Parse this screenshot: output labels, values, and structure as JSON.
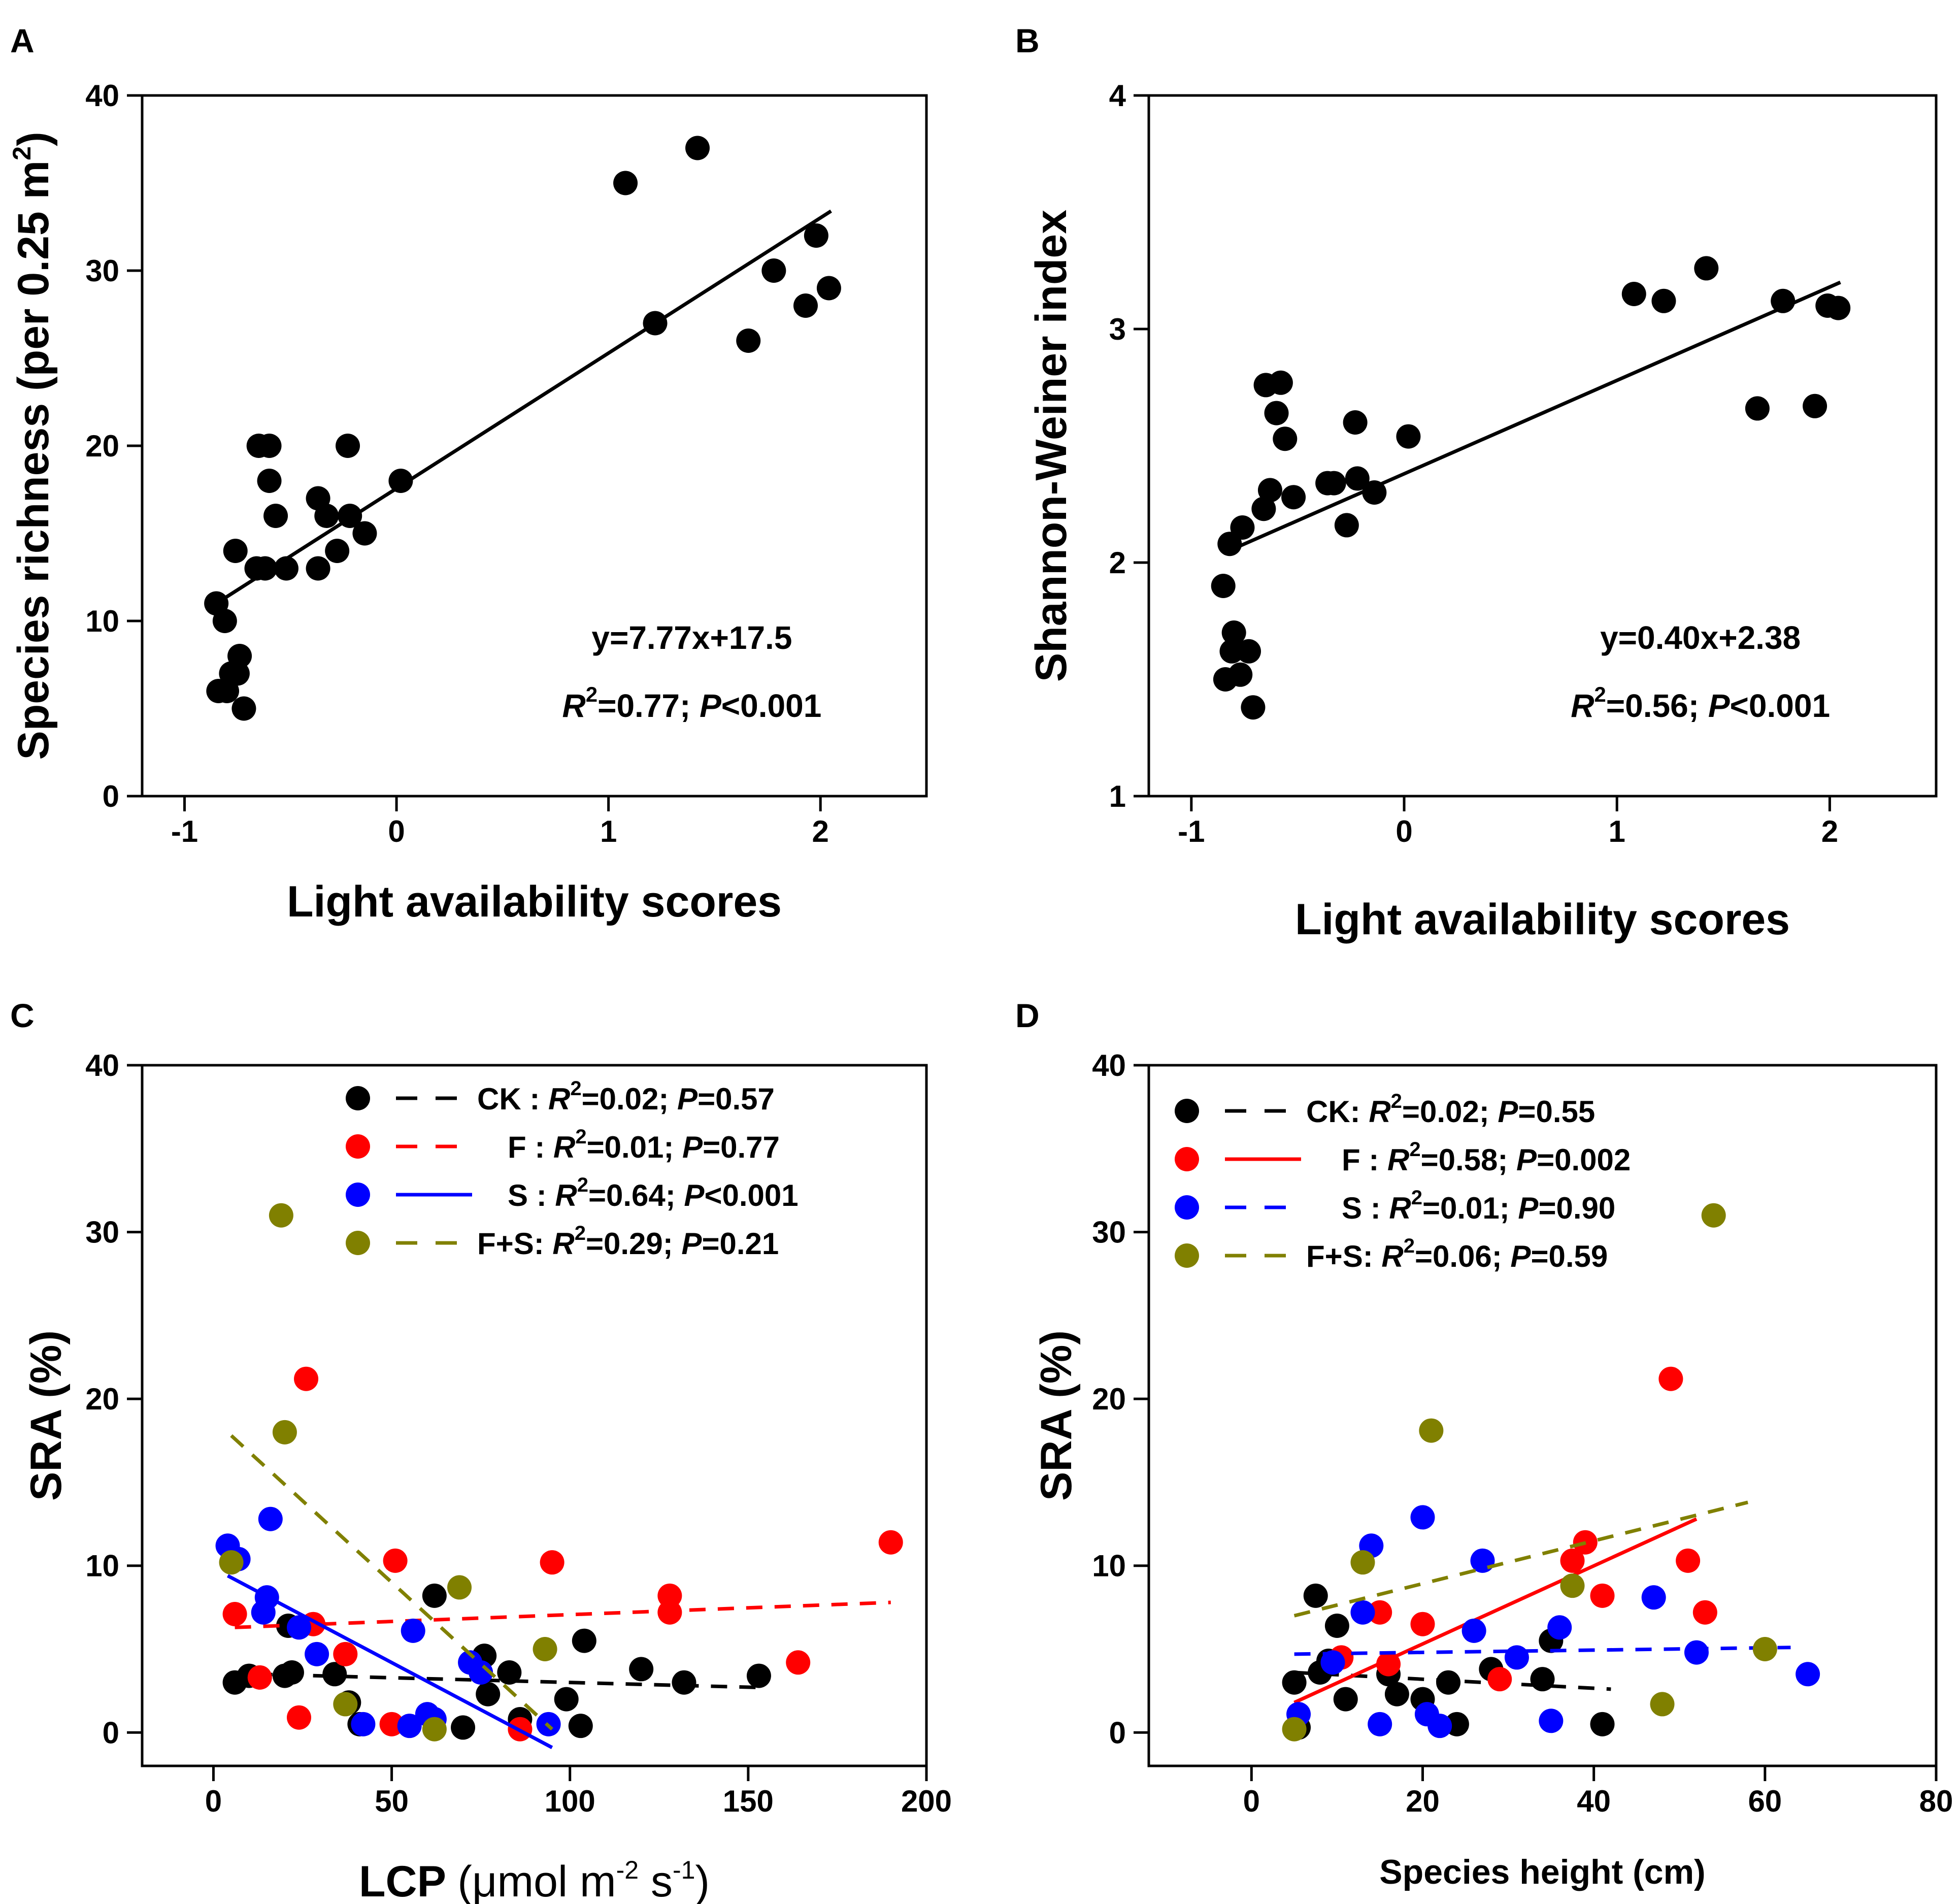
{
  "chart_data": [
    {
      "type": "scatter",
      "panel_label": "A",
      "xlabel": "Light availability scores",
      "ylabel": "Species richness (per 0.25 m",
      "ylabel_sup": "2",
      "ylabel_end": ")",
      "xlim": [
        -1.2,
        2.5
      ],
      "ylim": [
        0,
        40
      ],
      "xticks": [
        -1,
        0,
        1,
        2
      ],
      "yticks": [
        0,
        10,
        20,
        30,
        40
      ],
      "x_tick_labels": [
        "-1",
        "0",
        "1",
        "2"
      ],
      "y_tick_labels": [
        "0",
        "10",
        "20",
        "30",
        "40"
      ],
      "points": [
        [
          -0.85,
          11
        ],
        [
          -0.81,
          10
        ],
        [
          -0.84,
          6
        ],
        [
          -0.8,
          6
        ],
        [
          -0.78,
          7
        ],
        [
          -0.75,
          7
        ],
        [
          -0.74,
          8
        ],
        [
          -0.72,
          5
        ],
        [
          -0.76,
          14
        ],
        [
          -0.66,
          13
        ],
        [
          -0.65,
          20
        ],
        [
          -0.6,
          20
        ],
        [
          -0.6,
          18
        ],
        [
          -0.57,
          16
        ],
        [
          -0.62,
          13
        ],
        [
          -0.52,
          13
        ],
        [
          -0.37,
          17
        ],
        [
          -0.37,
          13
        ],
        [
          -0.33,
          16
        ],
        [
          -0.28,
          14
        ],
        [
          -0.23,
          20
        ],
        [
          -0.22,
          16
        ],
        [
          -0.15,
          15
        ],
        [
          0.02,
          18
        ],
        [
          1.08,
          35
        ],
        [
          1.22,
          27
        ],
        [
          1.42,
          37
        ],
        [
          1.66,
          26
        ],
        [
          1.78,
          30
        ],
        [
          1.93,
          28
        ],
        [
          1.98,
          32
        ],
        [
          2.04,
          29
        ]
      ],
      "fit": {
        "x": [
          -0.85,
          2.05
        ],
        "y": [
          11.0,
          33.4
        ],
        "color": "#000000",
        "dashed": false
      },
      "annotation": {
        "equation": "y=7.77x+17.5",
        "r2_symbol": "R",
        "r2_sup": "2",
        "r2_value": "=0.77;",
        "p_symbol": "P",
        "p_value": "<0.001"
      }
    },
    {
      "type": "scatter",
      "panel_label": "B",
      "xlabel": "Light availability scores",
      "ylabel": "Shannon-Weiner index",
      "xlim": [
        -1.2,
        2.5
      ],
      "ylim": [
        1,
        4
      ],
      "xticks": [
        -1,
        0,
        1,
        2
      ],
      "yticks": [
        1,
        2,
        3,
        4
      ],
      "x_tick_labels": [
        "-1",
        "0",
        "1",
        "2"
      ],
      "y_tick_labels": [
        "1",
        "2",
        "3",
        "4"
      ],
      "points": [
        [
          -0.85,
          1.9
        ],
        [
          -0.82,
          2.08
        ],
        [
          -0.8,
          1.7
        ],
        [
          -0.81,
          1.62
        ],
        [
          -0.84,
          1.5
        ],
        [
          -0.77,
          1.52
        ],
        [
          -0.73,
          1.62
        ],
        [
          -0.71,
          1.38
        ],
        [
          -0.76,
          2.15
        ],
        [
          -0.66,
          2.23
        ],
        [
          -0.65,
          2.76
        ],
        [
          -0.63,
          2.31
        ],
        [
          -0.6,
          2.64
        ],
        [
          -0.58,
          2.77
        ],
        [
          -0.56,
          2.53
        ],
        [
          -0.52,
          2.28
        ],
        [
          -0.36,
          2.34
        ],
        [
          -0.33,
          2.34
        ],
        [
          -0.27,
          2.16
        ],
        [
          -0.23,
          2.6
        ],
        [
          -0.22,
          2.36
        ],
        [
          -0.14,
          2.3
        ],
        [
          0.02,
          2.54
        ],
        [
          1.08,
          3.15
        ],
        [
          1.22,
          3.12
        ],
        [
          1.42,
          3.26
        ],
        [
          1.66,
          2.66
        ],
        [
          1.78,
          3.12
        ],
        [
          1.93,
          2.67
        ],
        [
          1.99,
          3.1
        ],
        [
          2.04,
          3.09
        ]
      ],
      "fit": {
        "x": [
          -0.85,
          2.05
        ],
        "y": [
          2.04,
          3.2
        ],
        "color": "#000000",
        "dashed": false
      },
      "annotation": {
        "equation": "y=0.40x+2.38",
        "r2_symbol": "R",
        "r2_sup": "2",
        "r2_value": "=0.56;",
        "p_symbol": "P",
        "p_value": "<0.001"
      }
    },
    {
      "type": "scatter",
      "panel_label": "C",
      "xlabel": "LCP",
      "xlabel_unit": "(μmol m",
      "xlabel_sup1": "-2",
      "xlabel_mid": " s",
      "xlabel_sup2": "-1",
      "xlabel_end": ")",
      "ylabel": "SRA (%)",
      "xlim": [
        -20,
        200
      ],
      "ylim": [
        -2,
        40
      ],
      "xticks": [
        0,
        50,
        100,
        150,
        200
      ],
      "yticks": [
        0,
        10,
        20,
        30,
        40
      ],
      "x_tick_labels": [
        "0",
        "50",
        "100",
        "150",
        "200"
      ],
      "y_tick_labels": [
        "0",
        "10",
        "20",
        "30",
        "40"
      ],
      "series": [
        {
          "name": "CK",
          "color": "#000000",
          "points": [
            [
              6,
              3
            ],
            [
              10,
              3.4
            ],
            [
              20,
              3.4
            ],
            [
              21,
              6.4
            ],
            [
              22,
              3.6
            ],
            [
              34,
              3.5
            ],
            [
              38,
              1.8
            ],
            [
              41,
              0.5
            ],
            [
              62,
              8.2
            ],
            [
              70,
              0.3
            ],
            [
              76,
              4.6
            ],
            [
              77,
              2.3
            ],
            [
              83,
              3.6
            ],
            [
              86,
              0.8
            ],
            [
              99,
              2.0
            ],
            [
              103,
              0.4
            ],
            [
              104,
              5.5
            ],
            [
              120,
              3.8
            ],
            [
              132,
              3.0
            ],
            [
              153,
              3.4
            ]
          ],
          "fit": {
            "x": [
              12,
              153
            ],
            "y": [
              3.5,
              2.7
            ],
            "dashed": true
          },
          "legend": {
            "sep": " : ",
            "r2_value": "=0.02;",
            "p_value": "=0.57"
          }
        },
        {
          "name": "F",
          "color": "#ff0000",
          "points": [
            [
              6,
              7.1
            ],
            [
              13,
              3.3
            ],
            [
              24,
              0.9
            ],
            [
              26,
              21.2
            ],
            [
              28,
              6.5
            ],
            [
              37,
              4.7
            ],
            [
              50,
              0.5
            ],
            [
              51,
              10.3
            ],
            [
              86,
              0.2
            ],
            [
              95,
              10.2
            ],
            [
              128,
              7.2
            ],
            [
              128,
              8.2
            ],
            [
              164,
              4.2
            ],
            [
              190,
              11.4
            ]
          ],
          "fit": {
            "x": [
              6,
              190
            ],
            "y": [
              6.3,
              7.8
            ],
            "dashed": true
          },
          "legend": {
            "sep": "  : ",
            "r2_value": "=0.01;",
            "p_value": "=0.77"
          }
        },
        {
          "name": "S",
          "color": "#0000ff",
          "points": [
            [
              4,
              11.2
            ],
            [
              7,
              10.4
            ],
            [
              14,
              7.2
            ],
            [
              15,
              8.1
            ],
            [
              16,
              12.8
            ],
            [
              24,
              6.3
            ],
            [
              29,
              4.7
            ],
            [
              42,
              0.5
            ],
            [
              55,
              0.4
            ],
            [
              56,
              6.1
            ],
            [
              60,
              1.1
            ],
            [
              62,
              0.8
            ],
            [
              72,
              4.2
            ],
            [
              75,
              3.6
            ],
            [
              94,
              0.5
            ]
          ],
          "fit": {
            "x": [
              4,
              95
            ],
            "y": [
              9.4,
              -0.9
            ],
            "dashed": false
          },
          "legend": {
            "sep": "  : ",
            "r2_value": "=0.64;",
            "p_value": "<0.001"
          }
        },
        {
          "name": "F+S",
          "color": "#808000",
          "points": [
            [
              5,
              10.2
            ],
            [
              19,
              31
            ],
            [
              20,
              18
            ],
            [
              37,
              1.7
            ],
            [
              62,
              0.2
            ],
            [
              69,
              8.7
            ],
            [
              93,
              5.0
            ]
          ],
          "fit": {
            "x": [
              5,
              95
            ],
            "y": [
              17.8,
              0.2
            ],
            "dashed": true
          },
          "legend": {
            "sep": ": ",
            "r2_value": "=0.29;",
            "p_value": "=0.21"
          }
        }
      ]
    },
    {
      "type": "scatter",
      "panel_label": "D",
      "xlabel": "Species height (cm)",
      "ylabel": "SRA (%)",
      "xlim": [
        -12,
        80
      ],
      "ylim": [
        -2,
        40
      ],
      "xticks": [
        0,
        20,
        40,
        60,
        80
      ],
      "yticks": [
        0,
        10,
        20,
        30,
        40
      ],
      "x_tick_labels": [
        "0",
        "20",
        "40",
        "60",
        "80"
      ],
      "y_tick_labels": [
        "0",
        "10",
        "20",
        "30",
        "40"
      ],
      "series": [
        {
          "name": "CK",
          "color": "#000000",
          "points": [
            [
              5,
              3
            ],
            [
              5.5,
              0.3
            ],
            [
              7.5,
              8.2
            ],
            [
              8,
              3.6
            ],
            [
              9,
              4.3
            ],
            [
              10,
              6.4
            ],
            [
              11,
              2.0
            ],
            [
              16,
              3.5
            ],
            [
              17,
              2.3
            ],
            [
              20,
              2.0
            ],
            [
              23,
              3.0
            ],
            [
              24,
              0.5
            ],
            [
              28,
              3.8
            ],
            [
              34,
              3.2
            ],
            [
              35,
              5.5
            ],
            [
              41,
              0.5
            ]
          ],
          "fit": {
            "x": [
              5,
              42
            ],
            "y": [
              3.6,
              2.6
            ],
            "dashed": true
          },
          "legend": {
            "sep": ": ",
            "r2_value": "=0.02;",
            "p_value": "=0.55"
          }
        },
        {
          "name": "F",
          "color": "#ff0000",
          "points": [
            [
              10.5,
              4.5
            ],
            [
              15,
              7.2
            ],
            [
              16,
              4.1
            ],
            [
              20,
              6.5
            ],
            [
              29,
              3.2
            ],
            [
              37.5,
              10.3
            ],
            [
              39,
              11.4
            ],
            [
              41,
              8.2
            ],
            [
              49,
              21.2
            ],
            [
              51,
              10.3
            ],
            [
              53,
              7.2
            ]
          ],
          "fit": {
            "x": [
              5,
              52
            ],
            "y": [
              1.8,
              12.8
            ],
            "dashed": false
          },
          "legend": {
            "sep": " : ",
            "r2_value": "=0.58;",
            "p_value": "=0.002"
          }
        },
        {
          "name": "S",
          "color": "#0000ff",
          "points": [
            [
              5.5,
              1.1
            ],
            [
              9.5,
              4.2
            ],
            [
              13,
              7.2
            ],
            [
              14,
              11.2
            ],
            [
              15,
              0.5
            ],
            [
              20,
              12.9
            ],
            [
              20.5,
              1.1
            ],
            [
              22,
              0.4
            ],
            [
              26,
              6.1
            ],
            [
              27,
              10.3
            ],
            [
              31,
              4.5
            ],
            [
              35,
              0.7
            ],
            [
              36,
              6.3
            ],
            [
              47,
              8.1
            ],
            [
              52,
              4.8
            ],
            [
              65,
              3.5
            ]
          ],
          "fit": {
            "x": [
              5,
              63
            ],
            "y": [
              4.7,
              5.1
            ],
            "dashed": true
          },
          "legend": {
            "sep": " : ",
            "r2_value": "=0.01;",
            "p_value": "=0.90"
          }
        },
        {
          "name": "F+S",
          "color": "#808000",
          "points": [
            [
              5,
              0.2
            ],
            [
              13,
              10.2
            ],
            [
              21,
              18.1
            ],
            [
              37.5,
              8.8
            ],
            [
              48,
              1.7
            ],
            [
              54,
              31
            ],
            [
              60,
              5
            ]
          ],
          "fit": {
            "x": [
              5,
              58
            ],
            "y": [
              7,
              13.8
            ],
            "dashed": true
          },
          "legend": {
            "sep": ": ",
            "r2_value": "=0.06;",
            "p_value": "=0.59"
          }
        }
      ]
    }
  ]
}
